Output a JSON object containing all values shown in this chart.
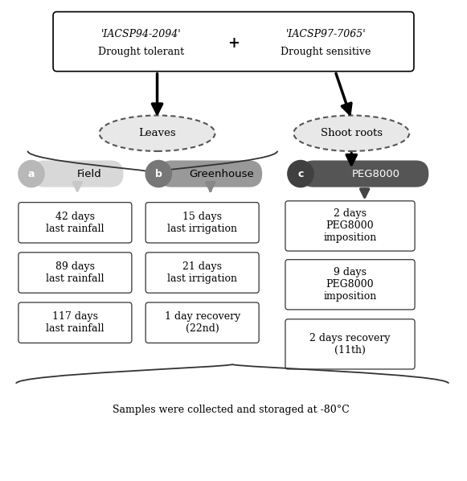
{
  "title_box": {
    "line1_left": "'IACSP94-2094'",
    "line2_left": "Drought tolerant",
    "plus": "+",
    "line1_right": "'IACSP97-7065'",
    "line2_right": "Drought sensitive"
  },
  "oval_leaves": "Leaves",
  "oval_roots": "Shoot roots",
  "bar_a_label": "a",
  "bar_a_text": "Field",
  "bar_b_label": "b",
  "bar_b_text": "Greenhouse",
  "bar_c_label": "c",
  "bar_c_text": "PEG8000",
  "bar_a_color": "#d8d8d8",
  "bar_a_circle_color": "#b8b8b8",
  "bar_b_color": "#999999",
  "bar_b_circle_color": "#777777",
  "bar_c_color": "#555555",
  "bar_c_circle_color": "#404040",
  "bar_c_text_color": "#ffffff",
  "arrow_a_color": "#c8c8c8",
  "arrow_b_color": "#888888",
  "arrow_c_color": "#444444",
  "boxes_a": [
    "42 days\nlast rainfall",
    "89 days\nlast rainfall",
    "117 days\nlast rainfall"
  ],
  "boxes_b": [
    "15 days\nlast irrigation",
    "21 days\nlast irrigation",
    "1 day recovery\n(22nd)"
  ],
  "boxes_c": [
    "2 days\nPEG8000\nimposition",
    "9 days\nPEG8000\nimposition",
    "2 days recovery\n(11th)"
  ],
  "bottom_text": "Samples were collected and storaged at -80°C",
  "bg_color": "#ffffff"
}
